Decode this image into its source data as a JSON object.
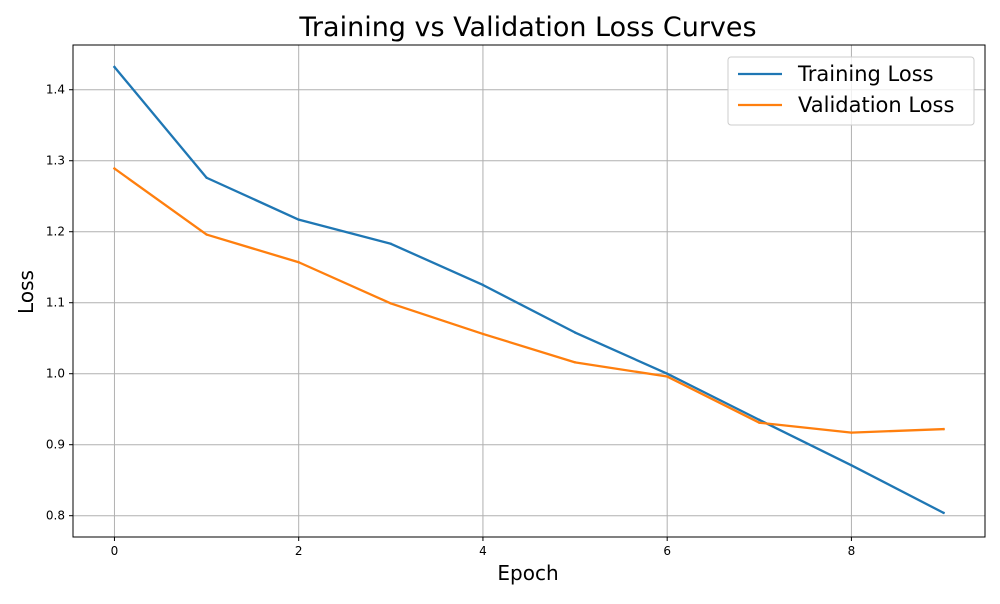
{
  "chart_data": {
    "type": "line",
    "title": "Training vs Validation Loss Curves",
    "xlabel": "Epoch",
    "ylabel": "Loss",
    "x": [
      0,
      1,
      2,
      3,
      4,
      5,
      6,
      7,
      8,
      9
    ],
    "xlim": [
      -0.45,
      9.45
    ],
    "ylim": [
      0.77,
      1.463
    ],
    "x_ticks": [
      0,
      2,
      4,
      6,
      8
    ],
    "x_tick_labels": [
      "0",
      "2",
      "4",
      "6",
      "8"
    ],
    "y_ticks": [
      0.8,
      0.9,
      1.0,
      1.1,
      1.2,
      1.3,
      1.4
    ],
    "y_tick_labels": [
      "0.8",
      "0.9",
      "1.0",
      "1.1",
      "1.2",
      "1.3",
      "1.4"
    ],
    "grid": true,
    "legend_position": "top-right",
    "series": [
      {
        "name": "Training Loss",
        "color": "#1f77b4",
        "values": [
          1.432,
          1.276,
          1.217,
          1.183,
          1.125,
          1.058,
          1.0,
          0.935,
          0.871,
          0.804
        ]
      },
      {
        "name": "Validation Loss",
        "color": "#ff7f0e",
        "values": [
          1.289,
          1.196,
          1.157,
          1.099,
          1.056,
          1.016,
          0.996,
          0.931,
          0.917,
          0.922
        ]
      }
    ]
  }
}
